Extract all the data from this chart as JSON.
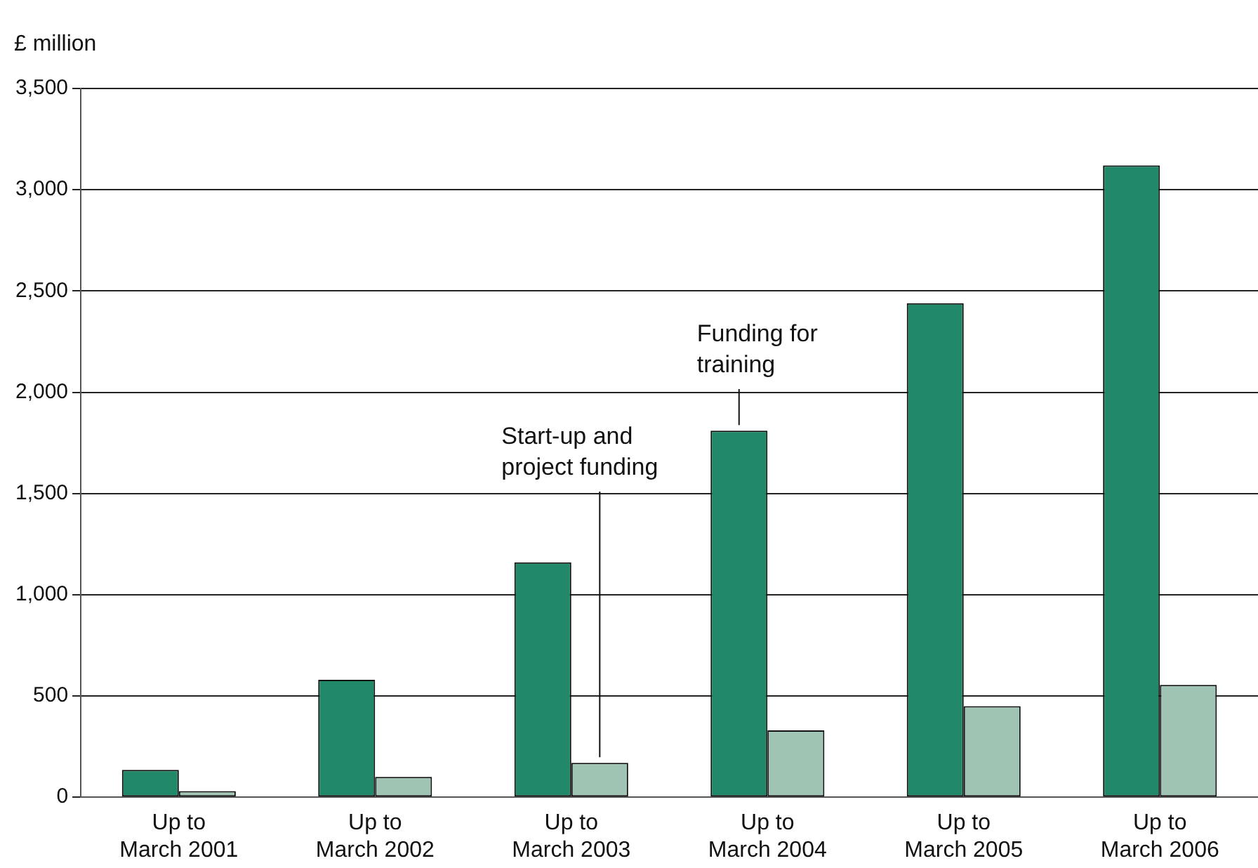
{
  "chart_data": {
    "type": "bar",
    "ylabel": "£ million",
    "categories": [
      "Up to\nMarch 2001",
      "Up to\nMarch 2002",
      "Up to\nMarch 2003",
      "Up to\nMarch 2004",
      "Up to\nMarch 2005",
      "Up to\nMarch 2006"
    ],
    "series": [
      {
        "name": "Funding for\ntraining",
        "color": "#21896a",
        "values": [
          135,
          580,
          1160,
          1810,
          2440,
          3120
        ]
      },
      {
        "name": "Start-up and\nproject funding",
        "color": "#a0c4b4",
        "values": [
          30,
          100,
          170,
          330,
          450,
          555
        ]
      }
    ],
    "ylim": [
      0,
      3500
    ],
    "yticks": [
      {
        "value": 0,
        "label": "0"
      },
      {
        "value": 500,
        "label": "500"
      },
      {
        "value": 1000,
        "label": "1,000"
      },
      {
        "value": 1500,
        "label": "1,500"
      },
      {
        "value": 2000,
        "label": "2,000"
      },
      {
        "value": 2500,
        "label": "2,500"
      },
      {
        "value": 3000,
        "label": "3,000"
      },
      {
        "value": 3500,
        "label": "3,500"
      }
    ],
    "grid": "y",
    "legend": false
  }
}
